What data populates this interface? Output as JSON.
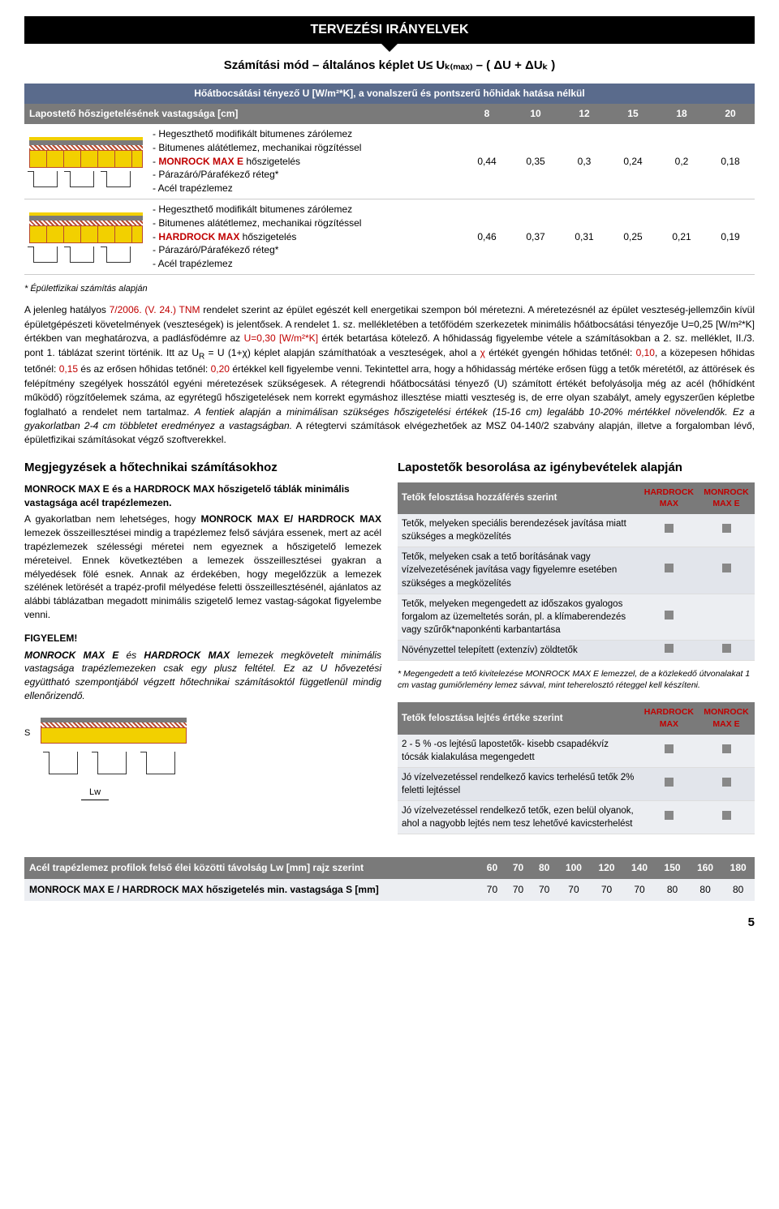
{
  "header": "TERVEZÉSI  IRÁNYELVEK",
  "subtitle": "Számítási mód – általános képlet U≤ Uₖ₍ₘₐₓ₎ – ( ΔU + ΔUₖ )",
  "table1": {
    "row1_label": "Hőátbocsátási tényező U [W/m²*K], a vonalszerű és pontszerű hőhidak hatása nélkül",
    "row2_label": "Lapostető hőszigetelésének vastagsága [cm]",
    "row2_vals": [
      "8",
      "10",
      "12",
      "15",
      "18",
      "20"
    ],
    "layerA": {
      "items": [
        "Hegeszthető modifikált bitumenes zárólemez",
        "Bitumenes alátétlemez, mechanikai  rögzítéssel",
        "MONROCK MAX E hőszigetelés",
        "Párazáró/Párafékező réteg*",
        "Acél trapézlemez"
      ],
      "product_idx": 2,
      "vals": [
        "0,44",
        "0,35",
        "0,3",
        "0,24",
        "0,2",
        "0,18"
      ]
    },
    "layerB": {
      "items": [
        "Hegeszthető modifikált bitumenes zárólemez",
        "Bitumenes alátétlemez, mechanikai rögzítéssel",
        "HARDROCK MAX hőszigetelés",
        "Párazáró/Párafékező réteg*",
        "Acél trapézlemez"
      ],
      "product_idx": 2,
      "vals": [
        "0,46",
        "0,37",
        "0,31",
        "0,25",
        "0,21",
        "0,19"
      ]
    }
  },
  "footnote": "* Épületfizikai számítás alapján",
  "bodytext": "A jelenleg hatályos <span class='red'>7/2006. (V. 24.) TNM</span> rendelet szerint az épület egészét kell energetikai szempon ból méretezni. A méretezésnél az épület veszteség-jellemzőin kívül épületgépészeti követelmények (veszteségek) is jelentősek. A rendelet 1. sz. mellékletében a tetőfödém szerkezetek minimális hőátbocsátási tényezője U=0,25 [W/m²*K] értékben van meghatározva, a padlásfödémre az <span class='red'>U=0,30 [W/m²*K]</span> érték betartása kötelező. A hőhidasság figyelembe vétele a számításokban a 2. sz. melléklet, II./3. pont 1. táblázat szerint történik. Itt az U<sub>R</sub> = U (1+χ) képlet alapján számíthatóak a veszteségek, ahol a <span class='red'>χ</span> értékét gyengén hőhidas tetőnél: <span class='red'>0,10</span>, a közepesen hőhidas tetőnél: <span class='red'>0,15</span> és az erősen hőhidas tetőnél: <span class='red'>0,20</span> értékkel kell figyelembe venni. Tekintettel arra, hogy a hőhidasság mértéke erősen függ a tetők méretétől, az áttörések és felépítmény szegélyek hosszától egyéni méretezések szükségesek. A rétegrendi hőátbocsátási tényező (U) számított értékét befolyásolja még az acél (hőhídként működő) rögzítőelemek száma, az egyrétegű hőszigetelések nem korrekt egymáshoz illesztése miatti veszteség is, de erre olyan szabályt, amely egyszerűen képletbe foglalható a rendelet nem tartalmaz. <em>A fentiek alapján a minimálisan szükséges hőszigetelési értékek (15-16 cm) legalább 10-20% mértékkel növelendők. Ez a gyakorlatban 2-4 cm többletet eredményez a vastagságban.</em> A rétegtervi számítások elvégezhetőek az MSZ 04-140/2 szabvány alapján, illetve a forgalomban lévő, épületfizikai számításokat végző szoftverekkel.",
  "left": {
    "h": "Megjegyzések a hőtechnikai számításokhoz",
    "sub": "MONROCK MAX E és a HARDROCK MAX hőszigetelő táblák minimális vastagsága acél trapézlemezen.",
    "p": "A gyakorlatban nem lehetséges, hogy  <b>MONROCK MAX E/ HARDROCK MAX</b>  lemezek összeillesztései mindig a trapézlemez felső sávjára essenek, mert az acél trapézlemezek szélességi méretei nem egyeznek a hőszigetelő lemezek méreteivel. Ennek következtében a lemezek összeillesztései gyakran a mélyedések fölé esnek. Annak az érdekében, hogy megelőzzük a lemezek szélének letörését a trapéz-profil mélyedése feletti összeillesztésénél, ajánlatos az alábbi táblázatban megadott minimális szigetelő lemez vastag-ságokat figyelembe venni.",
    "warn": "FIGYELEM!",
    "warn_body": "<b>MONROCK MAX E</b> és <b>HARDROCK MAX</b> lemezek megkövetelt minimális vastagsága trapézlemezeken csak egy plusz feltétel. Ez az U hővezetési együttható szempontjából végzett hőtechnikai számításoktól függetlenül mindig ellenőrizendő.",
    "s_label": "S",
    "lw_label": "Lw"
  },
  "right": {
    "h": "Lapostetők besorolása az igénybevételek alapján",
    "t1": {
      "head": "Tetők felosztása hozzáférés szerint",
      "cols": [
        "HARDROCK MAX",
        "MONROCK MAX E"
      ],
      "rows": [
        {
          "txt": "Tetők, melyeken speciális berendezések javítása miatt szükséges a megközelítés",
          "a": true,
          "b": true
        },
        {
          "txt": "Tetők, melyeken csak a tető borításának vagy vízelvezetésének javítása vagy figyelemre esetében szükséges a megközelítés",
          "a": true,
          "b": true
        },
        {
          "txt": "Tetők, melyeken megengedett az időszakos gyalogos forgalom az üzemeltetés során, pl. a klímaberendezés vagy szűrők*naponkénti karbantartása",
          "a": true,
          "b": false
        },
        {
          "txt": "Növényzettel telepített (extenzív) zöldtetők",
          "a": true,
          "b": true
        }
      ],
      "foot": "* Megengedett a tető kivitelezése MONROCK MAX E lemezzel, de a közlekedő útvonalakat 1 cm vastag gumiőrlemény lemez sávval, mint teherelosztó réteggel kell készíteni."
    },
    "t2": {
      "head": "Tetők felosztása lejtés értéke szerint",
      "cols": [
        "HARDROCK MAX",
        "MONROCK MAX E"
      ],
      "rows": [
        {
          "txt": "2 - 5 % -os lejtésű lapostetők-\nkisebb csapadékvíz tócsák kialakulása megengedett",
          "a": true,
          "b": true
        },
        {
          "txt": "Jó vízelvezetéssel rendelkező kavics terhelésű tetők 2% feletti lejtéssel",
          "a": true,
          "b": true
        },
        {
          "txt": "Jó vízelvezetéssel rendelkező tetők, ezen belül olyanok, ahol a nagyobb lejtés nem tesz lehetővé kavicsterhelést",
          "a": true,
          "b": true
        }
      ]
    }
  },
  "bottom": {
    "row1_label": "Acél trapézlemez profilok felső élei közötti távolság Lw [mm] rajz szerint",
    "row1_vals": [
      "60",
      "70",
      "80",
      "100",
      "120",
      "140",
      "150",
      "160",
      "180"
    ],
    "row2_label": "MONROCK MAX E / HARDROCK MAX  hőszigetelés min. vastagsága S [mm]",
    "row2_vals": [
      "70",
      "70",
      "70",
      "70",
      "70",
      "70",
      "80",
      "80",
      "80"
    ]
  },
  "pagenum": "5"
}
